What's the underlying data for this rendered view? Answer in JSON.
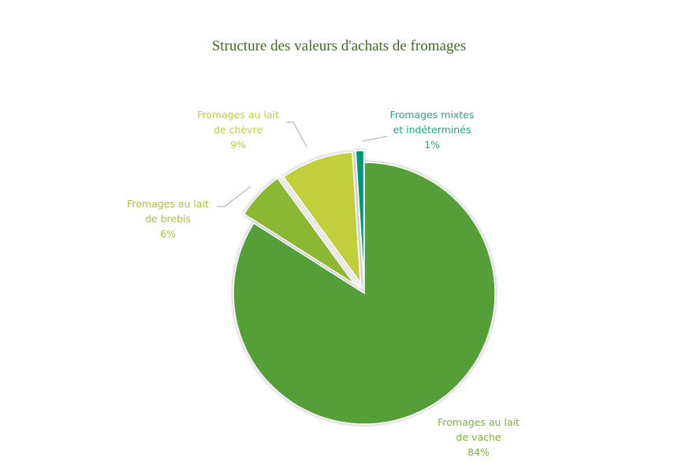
{
  "chart_data": {
    "type": "pie",
    "title": "Structure des valeurs d'achats de fromages",
    "categories": [
      "Fromages au lait de vache",
      "Fromages au lait de brebis",
      "Fromages au lait de chèvre",
      "Fromages mixtes et indéterminés"
    ],
    "values": [
      84,
      6,
      9,
      1
    ],
    "unit": "%",
    "colors": [
      "#549E39",
      "#8AB833",
      "#C0CF3A",
      "#029676"
    ],
    "exploded": [
      false,
      true,
      true,
      true
    ],
    "legend": "none (data labels with leader lines)"
  },
  "labels": {
    "vache": {
      "line1": "Fromages au lait",
      "line2": "de vache",
      "pct": "84%",
      "color": "#7DB33A"
    },
    "brebis": {
      "line1": "Fromages au lait",
      "line2": "de brebis",
      "pct": "6%",
      "color": "#A9C23B"
    },
    "chevre": {
      "line1": "Fromages au lait",
      "line2": "de chèvre",
      "pct": "9%",
      "color": "#BFD03E"
    },
    "mixtes": {
      "line1": "Fromages mixtes",
      "line2": "et indéterminés",
      "pct": "1%",
      "color": "#2AA58A"
    }
  }
}
